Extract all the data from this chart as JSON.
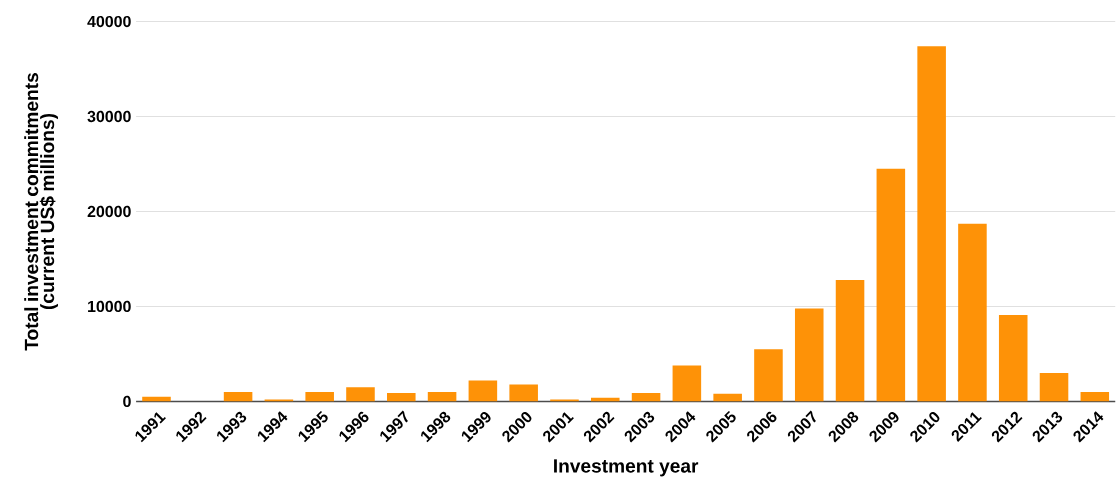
{
  "chart_data": {
    "type": "bar",
    "xlabel": "Investment year",
    "ylabel": "Total investment commitments (current US$ millions)",
    "categories": [
      "1991",
      "1992",
      "1993",
      "1994",
      "1995",
      "1996",
      "1997",
      "1998",
      "1999",
      "2000",
      "2001",
      "2002",
      "2003",
      "2004",
      "2005",
      "2006",
      "2007",
      "2008",
      "2009",
      "2010",
      "2011",
      "2012",
      "2013",
      "2014"
    ],
    "values": [
      500,
      0,
      1000,
      200,
      1000,
      1500,
      900,
      1000,
      2200,
      1800,
      200,
      400,
      900,
      3800,
      800,
      5500,
      9800,
      12800,
      24500,
      37400,
      18700,
      9100,
      3000,
      1000
    ],
    "color": "#fe9207",
    "ylim": [
      0,
      40000
    ],
    "yticks": [
      0,
      10000,
      20000,
      30000,
      40000
    ],
    "grid": "y"
  }
}
